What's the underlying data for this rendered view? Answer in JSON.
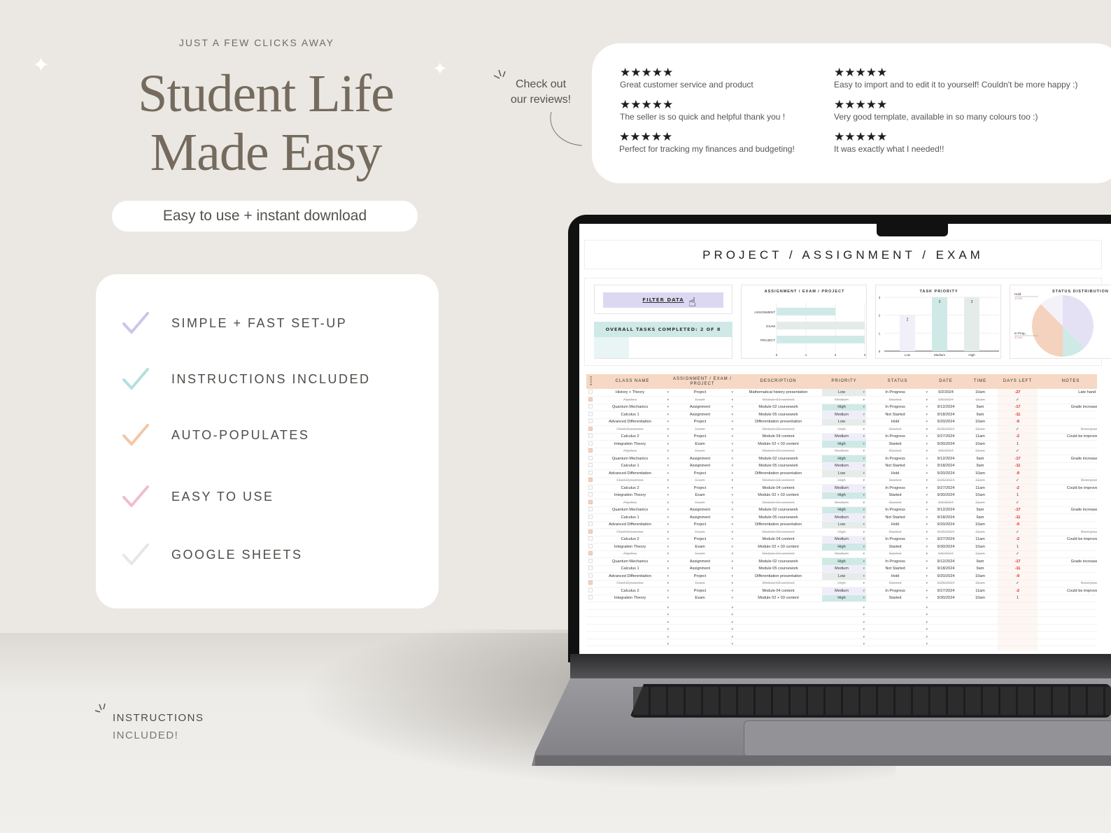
{
  "promo": {
    "eyebrow": "JUST A FEW CLICKS AWAY",
    "title_line1": "Student Life",
    "title_line2": "Made Easy",
    "pill": "Easy to use + instant download",
    "features": [
      {
        "label": "SIMPLE + FAST SET-UP",
        "color": "#cbc5ea"
      },
      {
        "label": "INSTRUCTIONS INCLUDED",
        "color": "#b5dfdd"
      },
      {
        "label": "AUTO-POPULATES",
        "color": "#f3c7a5"
      },
      {
        "label": "EASY TO USE",
        "color": "#f2bdcc"
      },
      {
        "label": "GOOGLE SHEETS",
        "color": "#e4e7e4"
      }
    ],
    "check_reviews_line1": "Check out",
    "check_reviews_line2": "our reviews!",
    "instructions_line1": "INSTRUCTIONS",
    "instructions_line2": "INCLUDED!"
  },
  "reviews": [
    {
      "stars": "★★★★★",
      "text": "Great customer service and product"
    },
    {
      "stars": "★★★★★",
      "text": "The seller is so quick and helpful thank you !"
    },
    {
      "stars": "★★★★★",
      "text": "Perfect for tracking my finances and budgeting!"
    },
    {
      "stars": "★★★★★",
      "text": "Easy to import and to edit it to yourself! Couldn't be more happy :)"
    },
    {
      "stars": "★★★★★",
      "text": "Very good template, available in so many colours too :)"
    },
    {
      "stars": "★★★★★",
      "text": "It was exactly what I needed!!"
    }
  ],
  "sheet": {
    "title": "PROJECT / ASSIGNMENT / EXAM",
    "filter_button": "FILTER DATA",
    "overall": "OVERALL TASKS COMPLETED: 2 OF 8",
    "progress_fraction": 0.25,
    "columns": [
      "DONE",
      "CLASS NAME",
      "ASSIGNMENT / EXAM / PROJECT",
      "DESCRIPTION",
      "PRIORITY",
      "STATUS",
      "DATE",
      "TIME",
      "DAYS LEFT",
      "NOTES"
    ],
    "priority_colors": {
      "Low": "#e6ecea",
      "Medium": "#efedf9",
      "High": "#cfe9e7"
    },
    "rows": [
      [
        false,
        "History + Theory",
        "Project",
        "Mathematical history presentation",
        "Low",
        "In Progress",
        "9/2/2024",
        "10am",
        "-27",
        "Late hand in"
      ],
      [
        true,
        "Algebra",
        "Exam",
        "Module 01 content",
        "Medium",
        "Started",
        "9/5/2024",
        "11am",
        "✓",
        ""
      ],
      [
        false,
        "Quantum Mechanics",
        "Assignment",
        "Module 02 coursework",
        "High",
        "In Progress",
        "9/12/2024",
        "9am",
        "-17",
        "Grade increased"
      ],
      [
        false,
        "Calculus 1",
        "Assignment",
        "Module 05 coursework",
        "Medium",
        "Not Started",
        "9/18/2024",
        "9am",
        "-11",
        ""
      ],
      [
        false,
        "Advanced Differentiation",
        "Project",
        "Differentiation presentation",
        "Low",
        "Hold",
        "9/20/2024",
        "10am",
        "-9",
        ""
      ],
      [
        true,
        "Fluid Dynamics",
        "Exam",
        "Module 03 content",
        "High",
        "Started",
        "9/25/2024",
        "11am",
        "✓",
        "Best grade"
      ],
      [
        false,
        "Calculus 2",
        "Project",
        "Module 04 content",
        "Medium",
        "In Progress",
        "9/27/2024",
        "11am",
        "-2",
        "Could be improved"
      ],
      [
        false,
        "Integration Theory",
        "Exam",
        "Module 02 + 03 content",
        "High",
        "Started",
        "9/30/2024",
        "10am",
        "1",
        ""
      ],
      [
        true,
        "Algebra",
        "Exam",
        "Module 01 content",
        "Medium",
        "Started",
        "9/5/2024",
        "11am",
        "✓",
        ""
      ],
      [
        false,
        "Quantum Mechanics",
        "Assignment",
        "Module 02 coursework",
        "High",
        "In Progress",
        "9/12/2024",
        "9am",
        "-17",
        "Grade increased"
      ],
      [
        false,
        "Calculus 1",
        "Assignment",
        "Module 05 coursework",
        "Medium",
        "Not Started",
        "9/18/2024",
        "9am",
        "-11",
        ""
      ],
      [
        false,
        "Advanced Differentiation",
        "Project",
        "Differentiation presentation",
        "Low",
        "Hold",
        "9/20/2024",
        "10am",
        "-9",
        ""
      ],
      [
        true,
        "Fluid Dynamics",
        "Exam",
        "Module 03 content",
        "High",
        "Started",
        "9/25/2024",
        "11am",
        "✓",
        "Best grade"
      ],
      [
        false,
        "Calculus 2",
        "Project",
        "Module 04 content",
        "Medium",
        "In Progress",
        "9/27/2024",
        "11am",
        "-2",
        "Could be improved"
      ],
      [
        false,
        "Integration Theory",
        "Exam",
        "Module 02 + 03 content",
        "High",
        "Started",
        "9/30/2024",
        "10am",
        "1",
        ""
      ],
      [
        true,
        "Algebra",
        "Exam",
        "Module 01 content",
        "Medium",
        "Started",
        "9/5/2024",
        "11am",
        "✓",
        ""
      ],
      [
        false,
        "Quantum Mechanics",
        "Assignment",
        "Module 02 coursework",
        "High",
        "In Progress",
        "9/12/2024",
        "9am",
        "-17",
        "Grade increased"
      ],
      [
        false,
        "Calculus 1",
        "Assignment",
        "Module 05 coursework",
        "Medium",
        "Not Started",
        "9/18/2024",
        "9am",
        "-11",
        ""
      ],
      [
        false,
        "Advanced Differentiation",
        "Project",
        "Differentiation presentation",
        "Low",
        "Hold",
        "9/20/2024",
        "10am",
        "-9",
        ""
      ],
      [
        true,
        "Fluid Dynamics",
        "Exam",
        "Module 03 content",
        "High",
        "Started",
        "9/25/2024",
        "11am",
        "✓",
        "Best grade"
      ],
      [
        false,
        "Calculus 2",
        "Project",
        "Module 04 content",
        "Medium",
        "In Progress",
        "9/27/2024",
        "11am",
        "-2",
        "Could be improved"
      ],
      [
        false,
        "Integration Theory",
        "Exam",
        "Module 02 + 03 content",
        "High",
        "Started",
        "9/30/2024",
        "10am",
        "1",
        ""
      ],
      [
        true,
        "Algebra",
        "Exam",
        "Module 01 content",
        "Medium",
        "Started",
        "9/5/2024",
        "11am",
        "✓",
        ""
      ],
      [
        false,
        "Quantum Mechanics",
        "Assignment",
        "Module 02 coursework",
        "High",
        "In Progress",
        "9/12/2024",
        "9am",
        "-17",
        "Grade increased"
      ],
      [
        false,
        "Calculus 1",
        "Assignment",
        "Module 05 coursework",
        "Medium",
        "Not Started",
        "9/18/2024",
        "9am",
        "-11",
        ""
      ],
      [
        false,
        "Advanced Differentiation",
        "Project",
        "Differentiation presentation",
        "Low",
        "Hold",
        "9/20/2024",
        "10am",
        "-9",
        ""
      ],
      [
        true,
        "Fluid Dynamics",
        "Exam",
        "Module 03 content",
        "High",
        "Started",
        "9/25/2024",
        "11am",
        "✓",
        "Best grade"
      ],
      [
        false,
        "Calculus 2",
        "Project",
        "Module 04 content",
        "Medium",
        "In Progress",
        "9/27/2024",
        "11am",
        "-2",
        "Could be improved"
      ],
      [
        false,
        "Integration Theory",
        "Exam",
        "Module 02 + 03 content",
        "High",
        "Started",
        "9/30/2024",
        "10am",
        "1",
        ""
      ]
    ],
    "empty_rows": 7
  },
  "chart_data": [
    {
      "type": "bar",
      "orientation": "horizontal",
      "title": "ASSIGNMENT / EXAM / PROJECT",
      "categories": [
        "ASSIGNMENT",
        "EXAM",
        "PROJECT"
      ],
      "values": [
        2,
        3,
        3
      ],
      "xlim": [
        0,
        3
      ],
      "ticks": [
        "0",
        "1",
        "2",
        "3"
      ],
      "colors": [
        "#cfe9e7",
        "#e3ece8",
        "#cfe9e7"
      ]
    },
    {
      "type": "bar",
      "title": "TASK PRIORITY",
      "categories": [
        "Low",
        "Medium",
        "High"
      ],
      "values": [
        2,
        3,
        3
      ],
      "ylim": [
        0,
        3
      ],
      "ticks": [
        "0",
        "1",
        "2",
        "3"
      ],
      "colors": [
        "#f1eff9",
        "#cfe9e7",
        "#e3ece8"
      ]
    },
    {
      "type": "pie",
      "title": "STATUS DISTRIBUTION",
      "slices": [
        {
          "label": "",
          "value": 37.5,
          "color": "#e4e1f5"
        },
        {
          "label": "",
          "value": 12.5,
          "color": "#cfe9e7"
        },
        {
          "label": "In Prog...",
          "pct": "37.5%",
          "value": 37.5,
          "color": "#f5d2bd"
        },
        {
          "label": "Hold",
          "pct": "12.5%",
          "value": 12.5,
          "color": "#f3f2f9"
        }
      ]
    }
  ]
}
